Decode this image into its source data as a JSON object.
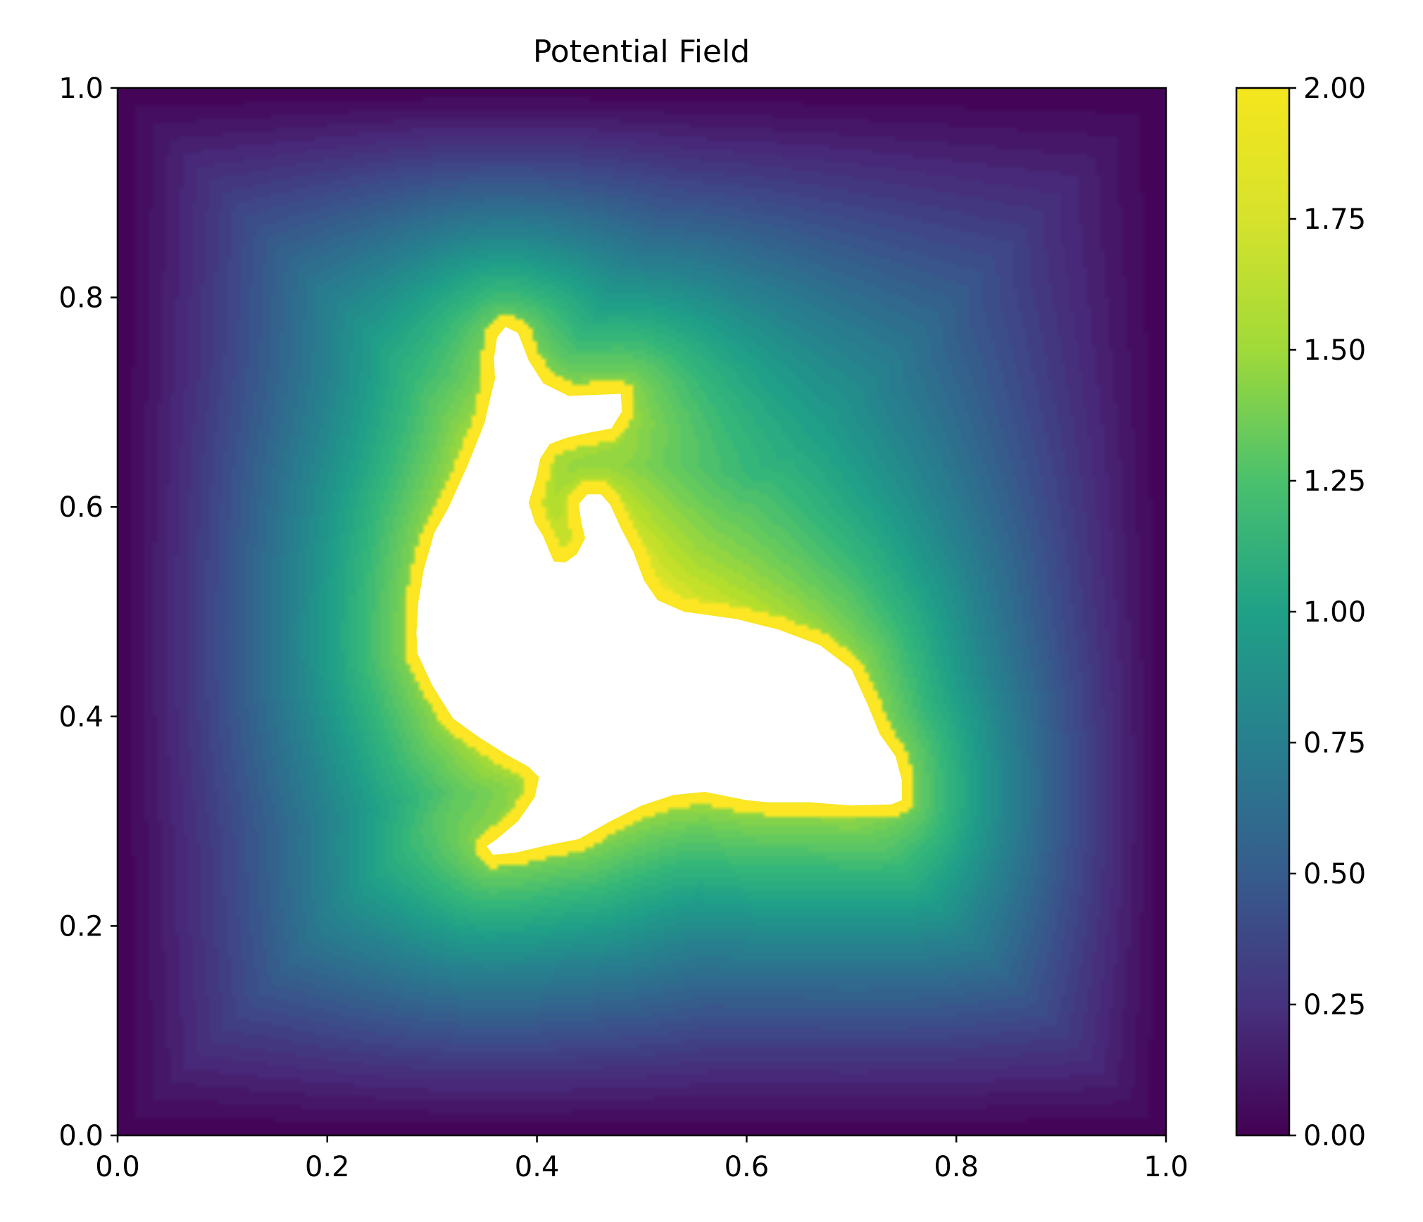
{
  "chart_data": {
    "type": "heatmap",
    "subtype": "filled-contour",
    "title": "Potential Field",
    "xlabel": "",
    "ylabel": "",
    "xlim": [
      0.0,
      1.0
    ],
    "ylim": [
      0.0,
      1.0
    ],
    "xticks": [
      "0.0",
      "0.2",
      "0.4",
      "0.6",
      "0.8",
      "1.0"
    ],
    "yticks": [
      "0.0",
      "0.2",
      "0.4",
      "0.6",
      "0.8",
      "1.0"
    ],
    "colorbar": {
      "colormap": "viridis",
      "range": [
        0.0,
        2.0
      ],
      "ticks": [
        "0.00",
        "0.25",
        "0.50",
        "0.75",
        "1.00",
        "1.25",
        "1.50",
        "1.75",
        "2.00"
      ],
      "placement": "right"
    },
    "field": {
      "description": "potential equals 0 on the outer boundary of the unit square and 2.00 on the boundary of a dolphin-shaped obstacle, which is excluded (white)",
      "obstacle_polygon": [
        [
          0.362,
          0.762
        ],
        [
          0.37,
          0.772
        ],
        [
          0.382,
          0.766
        ],
        [
          0.392,
          0.74
        ],
        [
          0.406,
          0.718
        ],
        [
          0.43,
          0.706
        ],
        [
          0.48,
          0.708
        ],
        [
          0.481,
          0.691
        ],
        [
          0.471,
          0.675
        ],
        [
          0.445,
          0.67
        ],
        [
          0.428,
          0.666
        ],
        [
          0.412,
          0.66
        ],
        [
          0.403,
          0.646
        ],
        [
          0.399,
          0.627
        ],
        [
          0.392,
          0.604
        ],
        [
          0.398,
          0.585
        ],
        [
          0.406,
          0.572
        ],
        [
          0.416,
          0.548
        ],
        [
          0.427,
          0.547
        ],
        [
          0.438,
          0.555
        ],
        [
          0.446,
          0.57
        ],
        [
          0.442,
          0.587
        ],
        [
          0.44,
          0.603
        ],
        [
          0.448,
          0.612
        ],
        [
          0.461,
          0.612
        ],
        [
          0.47,
          0.602
        ],
        [
          0.48,
          0.58
        ],
        [
          0.492,
          0.557
        ],
        [
          0.502,
          0.53
        ],
        [
          0.515,
          0.511
        ],
        [
          0.54,
          0.5
        ],
        [
          0.59,
          0.493
        ],
        [
          0.63,
          0.483
        ],
        [
          0.67,
          0.468
        ],
        [
          0.7,
          0.445
        ],
        [
          0.716,
          0.41
        ],
        [
          0.727,
          0.383
        ],
        [
          0.742,
          0.362
        ],
        [
          0.748,
          0.339
        ],
        [
          0.748,
          0.32
        ],
        [
          0.738,
          0.316
        ],
        [
          0.7,
          0.315
        ],
        [
          0.66,
          0.318
        ],
        [
          0.62,
          0.318
        ],
        [
          0.6,
          0.32
        ],
        [
          0.56,
          0.328
        ],
        [
          0.53,
          0.325
        ],
        [
          0.5,
          0.315
        ],
        [
          0.47,
          0.3
        ],
        [
          0.44,
          0.283
        ],
        [
          0.41,
          0.277
        ],
        [
          0.38,
          0.27
        ],
        [
          0.358,
          0.268
        ],
        [
          0.352,
          0.276
        ],
        [
          0.362,
          0.283
        ],
        [
          0.382,
          0.3
        ],
        [
          0.398,
          0.323
        ],
        [
          0.402,
          0.342
        ],
        [
          0.392,
          0.352
        ],
        [
          0.372,
          0.363
        ],
        [
          0.345,
          0.38
        ],
        [
          0.32,
          0.398
        ],
        [
          0.3,
          0.43
        ],
        [
          0.286,
          0.46
        ],
        [
          0.285,
          0.48
        ],
        [
          0.287,
          0.51
        ],
        [
          0.292,
          0.54
        ],
        [
          0.302,
          0.575
        ],
        [
          0.316,
          0.6
        ],
        [
          0.334,
          0.64
        ],
        [
          0.35,
          0.68
        ],
        [
          0.355,
          0.702
        ],
        [
          0.36,
          0.722
        ],
        [
          0.359,
          0.742
        ]
      ]
    }
  }
}
